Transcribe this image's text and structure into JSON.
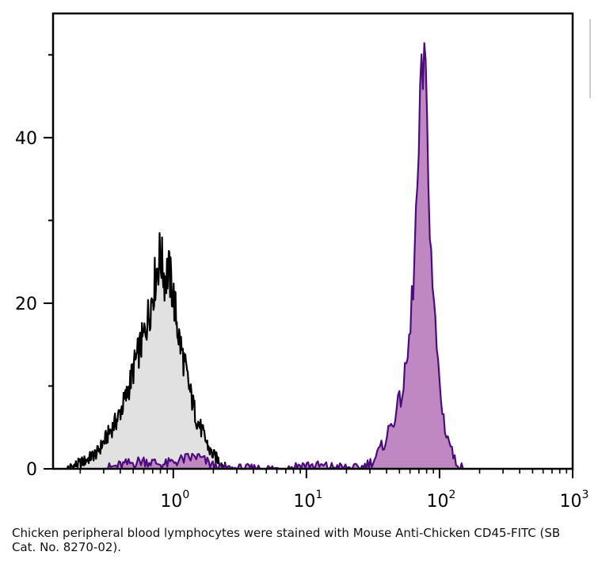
{
  "chart_data": {
    "type": "area",
    "x_scale": "log",
    "xlim": [
      0.125,
      1000
    ],
    "ylim": [
      0,
      55
    ],
    "x_ticks": [
      {
        "value": 1,
        "label": "10",
        "sup": "0"
      },
      {
        "value": 10,
        "label": "10",
        "sup": "1"
      },
      {
        "value": 100,
        "label": "10",
        "sup": "2"
      },
      {
        "value": 1000,
        "label": "10",
        "sup": "3"
      }
    ],
    "y_ticks": [
      {
        "value": 0,
        "label": "0"
      },
      {
        "value": 20,
        "label": "20"
      },
      {
        "value": 40,
        "label": "40"
      }
    ],
    "y_minor_ticks": [
      10,
      30,
      50
    ],
    "grid": false,
    "series": [
      {
        "fill": "#e1e1e1",
        "stroke": "#000000",
        "x": [
          0.16,
          0.22,
          0.27,
          0.32,
          0.38,
          0.45,
          0.52,
          0.6,
          0.68,
          0.75,
          0.8,
          0.86,
          0.92,
          1.0,
          1.1,
          1.2,
          1.35,
          1.5,
          1.7,
          1.9,
          2.2,
          2.5
        ],
        "y": [
          0,
          1,
          2,
          4,
          6,
          9,
          13,
          16,
          20,
          24,
          26,
          23,
          24,
          21,
          16,
          13,
          9,
          6,
          4,
          2,
          1,
          0
        ]
      },
      {
        "fill": "#c088c3",
        "stroke": "#4c0c7c",
        "x": [
          0.3,
          0.6,
          0.85,
          1.1,
          1.5,
          2.2,
          7,
          9,
          25,
          32,
          38,
          45,
          50,
          55,
          60,
          65,
          70,
          73,
          76,
          79,
          83,
          87,
          92,
          97,
          103,
          110,
          120,
          130,
          150
        ],
        "y": [
          0,
          1,
          0.5,
          1,
          1.5,
          0,
          0,
          0.5,
          0,
          1,
          3,
          6,
          8,
          11,
          16,
          26,
          38,
          45,
          50,
          44,
          35,
          25,
          18,
          13,
          8,
          5,
          3,
          1,
          0
        ]
      }
    ]
  },
  "caption": "Chicken peripheral blood lymphocytes were stained with Mouse Anti-Chicken CD45-FITC (SB Cat. No. 8270-02)."
}
